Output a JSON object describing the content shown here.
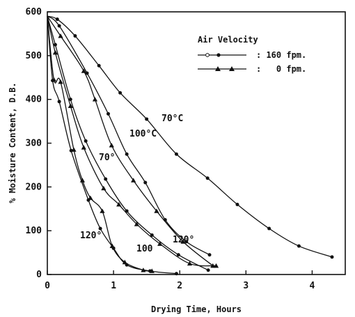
{
  "chart_data": {
    "type": "line",
    "xlabel": "Drying Time, Hours",
    "ylabel": "% Moisture Content, D.B.",
    "xlim": [
      0,
      4.5
    ],
    "ylim": [
      0,
      600
    ],
    "xticks": [
      "0",
      "1",
      "2",
      "3",
      "4"
    ],
    "yticks": [
      "0",
      "100",
      "200",
      "300",
      "400",
      "500",
      "600"
    ],
    "grid": false,
    "legend": {
      "title": "Air Velocity",
      "position": "top-right",
      "items": [
        {
          "marker": "circle",
          "label": ": 160 fpm."
        },
        {
          "marker": "triangle",
          "label": ":   0 fpm."
        }
      ]
    },
    "series": [
      {
        "marker": "circle",
        "x": [
          0,
          0.15,
          0.42,
          0.78,
          1.1,
          1.5,
          1.95,
          2.42,
          2.87,
          3.35,
          3.8,
          4.3
        ],
        "y": [
          590,
          583,
          545,
          477,
          415,
          355,
          275,
          220,
          160,
          105,
          65,
          40
        ]
      },
      {
        "marker": "circle",
        "x": [
          0,
          0.18,
          0.6,
          0.92,
          1.2,
          1.48,
          1.78,
          2.1,
          2.45
        ],
        "y": [
          590,
          568,
          460,
          367,
          275,
          210,
          125,
          75,
          45
        ]
      },
      {
        "marker": "triangle",
        "x": [
          0,
          0.2,
          0.55,
          0.72,
          0.97,
          1.3,
          1.65,
          2.05,
          2.5
        ],
        "y": [
          590,
          545,
          465,
          400,
          295,
          215,
          145,
          75,
          20
        ]
      },
      {
        "marker": "circle",
        "x": [
          0,
          0.12,
          0.35,
          0.58,
          0.88,
          1.2,
          1.58,
          1.98,
          2.43
        ],
        "y": [
          590,
          525,
          400,
          305,
          218,
          145,
          90,
          45,
          10
        ]
      },
      {
        "marker": "triangle",
        "x": [
          0,
          0.12,
          0.35,
          0.55,
          0.85,
          1.08,
          1.35,
          1.7,
          2.15,
          2.55
        ],
        "y": [
          590,
          507,
          385,
          290,
          197,
          160,
          115,
          70,
          25,
          20
        ]
      },
      {
        "marker": "triangle",
        "x": [
          0,
          0.1,
          0.2,
          0.4,
          0.53,
          0.65,
          0.83,
          0.98,
          1.17,
          1.45,
          1.58
        ],
        "y": [
          590,
          445,
          440,
          285,
          215,
          175,
          145,
          65,
          28,
          10,
          8
        ]
      },
      {
        "marker": "circle",
        "x": [
          0,
          0.08,
          0.18,
          0.36,
          0.62,
          0.8,
          1.0,
          1.2,
          1.55,
          1.95
        ],
        "y": [
          590,
          443,
          395,
          283,
          170,
          105,
          60,
          22,
          8,
          2
        ]
      }
    ],
    "annotations": [
      "70°C",
      "100°C",
      "70°",
      "120°",
      "120°",
      "100"
    ]
  }
}
